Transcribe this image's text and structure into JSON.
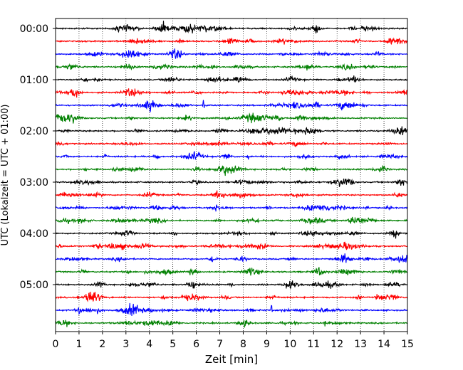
{
  "chart_data": {
    "type": "line",
    "title": "",
    "xlabel": "Zeit  [min]",
    "ylabel": "UTC (Lokalzeit = UTC + 01:00)",
    "xlim": [
      0,
      15
    ],
    "xticks": [
      0,
      1,
      2,
      3,
      4,
      5,
      6,
      7,
      8,
      9,
      10,
      11,
      12,
      13,
      14,
      15
    ],
    "x_grid": true,
    "y_tick_labels": [
      "00:00",
      "01:00",
      "02:00",
      "03:00",
      "04:00",
      "05:00"
    ],
    "trace_interval_minutes": 15,
    "trace_count": 24,
    "trace_colors": [
      "#000000",
      "#ff0000",
      "#0000ff",
      "#008000"
    ],
    "traces": [
      {
        "start": "00:00",
        "color": "black"
      },
      {
        "start": "00:15",
        "color": "red"
      },
      {
        "start": "00:30",
        "color": "blue"
      },
      {
        "start": "00:45",
        "color": "green"
      },
      {
        "start": "01:00",
        "color": "black"
      },
      {
        "start": "01:15",
        "color": "red"
      },
      {
        "start": "01:30",
        "color": "blue"
      },
      {
        "start": "01:45",
        "color": "green"
      },
      {
        "start": "02:00",
        "color": "black"
      },
      {
        "start": "02:15",
        "color": "red"
      },
      {
        "start": "02:30",
        "color": "blue"
      },
      {
        "start": "02:45",
        "color": "green"
      },
      {
        "start": "03:00",
        "color": "black"
      },
      {
        "start": "03:15",
        "color": "red"
      },
      {
        "start": "03:30",
        "color": "blue"
      },
      {
        "start": "03:45",
        "color": "green"
      },
      {
        "start": "04:00",
        "color": "black"
      },
      {
        "start": "04:15",
        "color": "red"
      },
      {
        "start": "04:30",
        "color": "blue"
      },
      {
        "start": "04:45",
        "color": "green"
      },
      {
        "start": "05:00",
        "color": "black"
      },
      {
        "start": "05:15",
        "color": "red"
      },
      {
        "start": "05:30",
        "color": "blue"
      },
      {
        "start": "05:45",
        "color": "green"
      }
    ],
    "notable_spikes": [
      {
        "trace": "01:30",
        "x": 6.3
      },
      {
        "trace": "02:00",
        "x": 10.2
      },
      {
        "trace": "02:30",
        "x": 8.2
      },
      {
        "trace": "05:30",
        "x": 1.0
      },
      {
        "trace": "05:30",
        "x": 9.2
      },
      {
        "trace": "05:45",
        "x": 11.5
      }
    ]
  }
}
